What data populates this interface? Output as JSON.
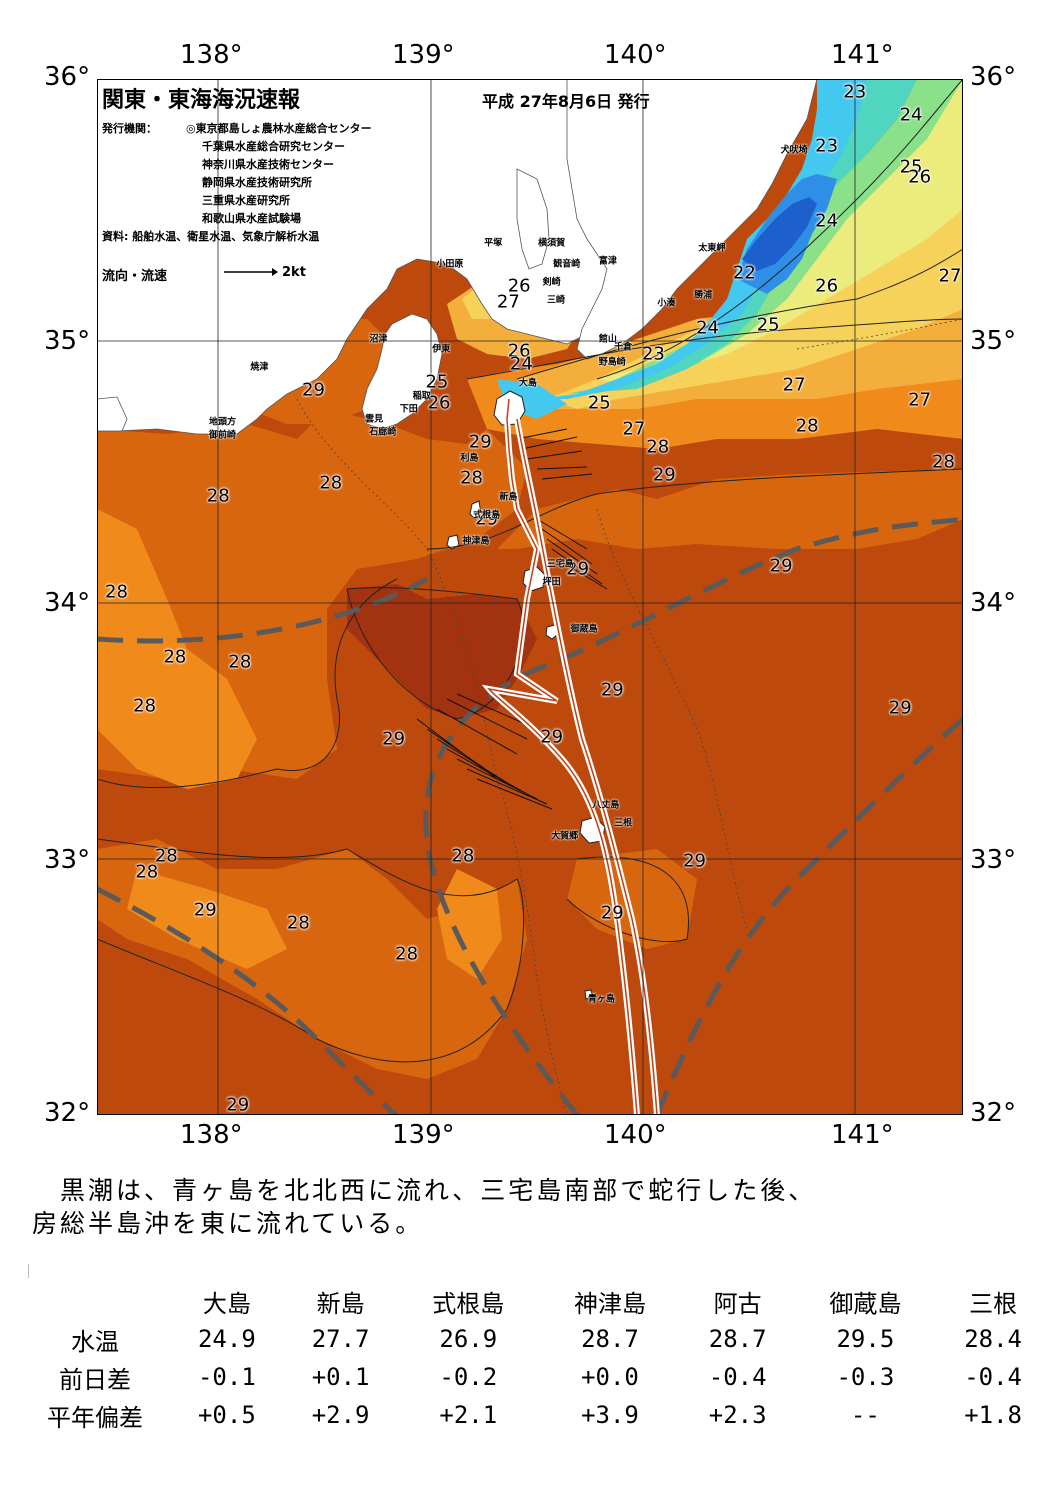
{
  "map": {
    "title": "関東・東海海況速報",
    "issue_date": "平成 27年8月6日 発行",
    "issuers_label": "発行機関：",
    "issuers": [
      "◎東京都島しょ農林水産総合センター",
      "千葉県水産総合研究センター",
      "神奈川県水産技術センター",
      "静岡県水産技術研究所",
      "三重県水産研究所",
      "和歌山県水産試験場"
    ],
    "data_source": "資料: 船舶水温、衛星水温、気象庁解析水温",
    "flow_legend_label": "流向・流速",
    "flow_legend_scale": "2kt",
    "lon_ticks": [
      "138°",
      "139°",
      "140°",
      "141°"
    ],
    "lat_ticks": [
      "36°",
      "35°",
      "34°",
      "33°",
      "32°"
    ],
    "temperature_labels": [
      {
        "text": "23",
        "lon": 141.0,
        "lat": 35.95
      },
      {
        "text": "24",
        "lon": 141.26,
        "lat": 35.86
      },
      {
        "text": "23",
        "lon": 140.87,
        "lat": 35.74
      },
      {
        "text": "25",
        "lon": 141.26,
        "lat": 35.66
      },
      {
        "text": "26",
        "lon": 141.3,
        "lat": 35.62
      },
      {
        "text": "24",
        "lon": 140.87,
        "lat": 35.45
      },
      {
        "text": "22",
        "lon": 140.49,
        "lat": 35.25
      },
      {
        "text": "26",
        "lon": 140.87,
        "lat": 35.2
      },
      {
        "text": "27",
        "lon": 141.44,
        "lat": 35.24
      },
      {
        "text": "24",
        "lon": 140.32,
        "lat": 35.04
      },
      {
        "text": "25",
        "lon": 140.6,
        "lat": 35.05
      },
      {
        "text": "23",
        "lon": 140.07,
        "lat": 34.94
      },
      {
        "text": "26",
        "lon": 139.45,
        "lat": 35.2
      },
      {
        "text": "27",
        "lon": 139.4,
        "lat": 35.14
      },
      {
        "text": "26",
        "lon": 139.45,
        "lat": 34.95
      },
      {
        "text": "24",
        "lon": 139.46,
        "lat": 34.9
      },
      {
        "text": "25",
        "lon": 139.07,
        "lat": 34.83
      },
      {
        "text": "26",
        "lon": 139.08,
        "lat": 34.75
      },
      {
        "text": "25",
        "lon": 139.82,
        "lat": 34.75
      },
      {
        "text": "27",
        "lon": 140.72,
        "lat": 34.82
      },
      {
        "text": "27",
        "lon": 141.3,
        "lat": 34.76
      },
      {
        "text": "27",
        "lon": 139.98,
        "lat": 34.65
      },
      {
        "text": "28",
        "lon": 140.78,
        "lat": 34.66
      },
      {
        "text": "28",
        "lon": 140.09,
        "lat": 34.58
      },
      {
        "text": "28",
        "lon": 141.41,
        "lat": 34.52
      },
      {
        "text": "29",
        "lon": 138.5,
        "lat": 34.8
      },
      {
        "text": "29",
        "lon": 139.27,
        "lat": 34.6
      },
      {
        "text": "29",
        "lon": 140.12,
        "lat": 34.47
      },
      {
        "text": "28",
        "lon": 138.58,
        "lat": 34.44
      },
      {
        "text": "28",
        "lon": 138.06,
        "lat": 34.39
      },
      {
        "text": "28",
        "lon": 139.23,
        "lat": 34.46
      },
      {
        "text": "29",
        "lon": 139.3,
        "lat": 34.3
      },
      {
        "text": "29",
        "lon": 139.72,
        "lat": 34.11
      },
      {
        "text": "29",
        "lon": 140.66,
        "lat": 34.12
      },
      {
        "text": "28",
        "lon": 137.59,
        "lat": 34.02
      },
      {
        "text": "28",
        "lon": 137.86,
        "lat": 33.77
      },
      {
        "text": "28",
        "lon": 138.16,
        "lat": 33.75
      },
      {
        "text": "28",
        "lon": 137.72,
        "lat": 33.58
      },
      {
        "text": "29",
        "lon": 139.88,
        "lat": 33.64
      },
      {
        "text": "29",
        "lon": 141.21,
        "lat": 33.57
      },
      {
        "text": "29",
        "lon": 138.87,
        "lat": 33.45
      },
      {
        "text": "29",
        "lon": 139.6,
        "lat": 33.46
      },
      {
        "text": "28",
        "lon": 137.82,
        "lat": 33.0
      },
      {
        "text": "28",
        "lon": 137.73,
        "lat": 32.94
      },
      {
        "text": "28",
        "lon": 139.19,
        "lat": 33.0
      },
      {
        "text": "29",
        "lon": 140.26,
        "lat": 32.98
      },
      {
        "text": "29",
        "lon": 138.0,
        "lat": 32.79
      },
      {
        "text": "28",
        "lon": 138.43,
        "lat": 32.74
      },
      {
        "text": "29",
        "lon": 139.88,
        "lat": 32.78
      },
      {
        "text": "28",
        "lon": 138.93,
        "lat": 32.62
      },
      {
        "text": "29",
        "lon": 138.15,
        "lat": 32.0
      }
    ],
    "place_labels": [
      {
        "text": "犬吠埼",
        "lon": 140.72,
        "lat": 35.73
      },
      {
        "text": "太東岬",
        "lon": 140.34,
        "lat": 35.35
      },
      {
        "text": "勝浦",
        "lon": 140.3,
        "lat": 35.17
      },
      {
        "text": "小湊",
        "lon": 140.13,
        "lat": 35.14
      },
      {
        "text": "富津",
        "lon": 139.86,
        "lat": 35.3
      },
      {
        "text": "館山",
        "lon": 139.86,
        "lat": 35.0
      },
      {
        "text": "千倉",
        "lon": 139.93,
        "lat": 34.97
      },
      {
        "text": "野島崎",
        "lon": 139.88,
        "lat": 34.91
      },
      {
        "text": "横須賀",
        "lon": 139.6,
        "lat": 35.37
      },
      {
        "text": "観音崎",
        "lon": 139.67,
        "lat": 35.29
      },
      {
        "text": "平塚",
        "lon": 139.33,
        "lat": 35.37
      },
      {
        "text": "剣崎",
        "lon": 139.6,
        "lat": 35.22
      },
      {
        "text": "三崎",
        "lon": 139.62,
        "lat": 35.15
      },
      {
        "text": "小田原",
        "lon": 139.13,
        "lat": 35.29
      },
      {
        "text": "沼津",
        "lon": 138.8,
        "lat": 35.0
      },
      {
        "text": "伊東",
        "lon": 139.09,
        "lat": 34.96
      },
      {
        "text": "焼津",
        "lon": 138.25,
        "lat": 34.89
      },
      {
        "text": "稲取",
        "lon": 139.0,
        "lat": 34.78
      },
      {
        "text": "下田",
        "lon": 138.94,
        "lat": 34.73
      },
      {
        "text": "雲見",
        "lon": 138.78,
        "lat": 34.69
      },
      {
        "text": "石廊崎",
        "lon": 138.82,
        "lat": 34.64
      },
      {
        "text": "地頭方",
        "lon": 138.08,
        "lat": 34.68
      },
      {
        "text": "御前崎",
        "lon": 138.08,
        "lat": 34.63
      },
      {
        "text": "大島",
        "lon": 139.49,
        "lat": 34.83
      },
      {
        "text": "利島",
        "lon": 139.22,
        "lat": 34.54
      },
      {
        "text": "新島",
        "lon": 139.4,
        "lat": 34.39
      },
      {
        "text": "式根島",
        "lon": 139.3,
        "lat": 34.32
      },
      {
        "text": "神津島",
        "lon": 139.25,
        "lat": 34.22
      },
      {
        "text": "三宅島",
        "lon": 139.64,
        "lat": 34.13
      },
      {
        "text": "坪田",
        "lon": 139.6,
        "lat": 34.06
      },
      {
        "text": "御蔵島",
        "lon": 139.75,
        "lat": 33.88
      },
      {
        "text": "八丈島",
        "lon": 139.85,
        "lat": 33.2
      },
      {
        "text": "三根",
        "lon": 139.93,
        "lat": 33.13
      },
      {
        "text": "大賀郷",
        "lon": 139.66,
        "lat": 33.08
      },
      {
        "text": "青ヶ島",
        "lon": 139.83,
        "lat": 32.45
      }
    ]
  },
  "summary": {
    "line1": "　黒潮は、青ヶ島を北北西に流れ、三宅島南部で蛇行した後、",
    "line2": "房総半島沖を東に流れている。"
  },
  "table": {
    "stations": [
      "大島",
      "新島",
      "式根島",
      "神津島",
      "阿古",
      "御蔵島",
      "三根"
    ],
    "rows": [
      {
        "label": "水温",
        "values": [
          "24.9",
          "27.7",
          "26.9",
          "28.7",
          "28.7",
          "29.5",
          "28.4"
        ]
      },
      {
        "label": "前日差",
        "values": [
          "-0.1",
          "+0.1",
          "-0.2",
          "+0.0",
          "-0.4",
          "-0.3",
          "-0.4"
        ]
      },
      {
        "label": "平年偏差",
        "values": [
          "+0.5",
          "+2.9",
          "+2.1",
          "+3.9",
          "+2.3",
          "--",
          "+1.8"
        ]
      }
    ]
  },
  "colors": {
    "t29plus": "#a33210",
    "t29": "#bd4a0c",
    "t28": "#d8660f",
    "t27": "#f08a1a",
    "t26": "#f4ae3c",
    "t25": "#f7d25a",
    "t24": "#ecec7c",
    "t23": "#8be08a",
    "t22": "#4fd5c0",
    "t21": "#43c8ef",
    "t20": "#2f8ee6",
    "t19": "#1e5fce",
    "land": "#ffffff",
    "kuroshio": "#ffffff",
    "mean_axis": "#5a5a5a"
  }
}
